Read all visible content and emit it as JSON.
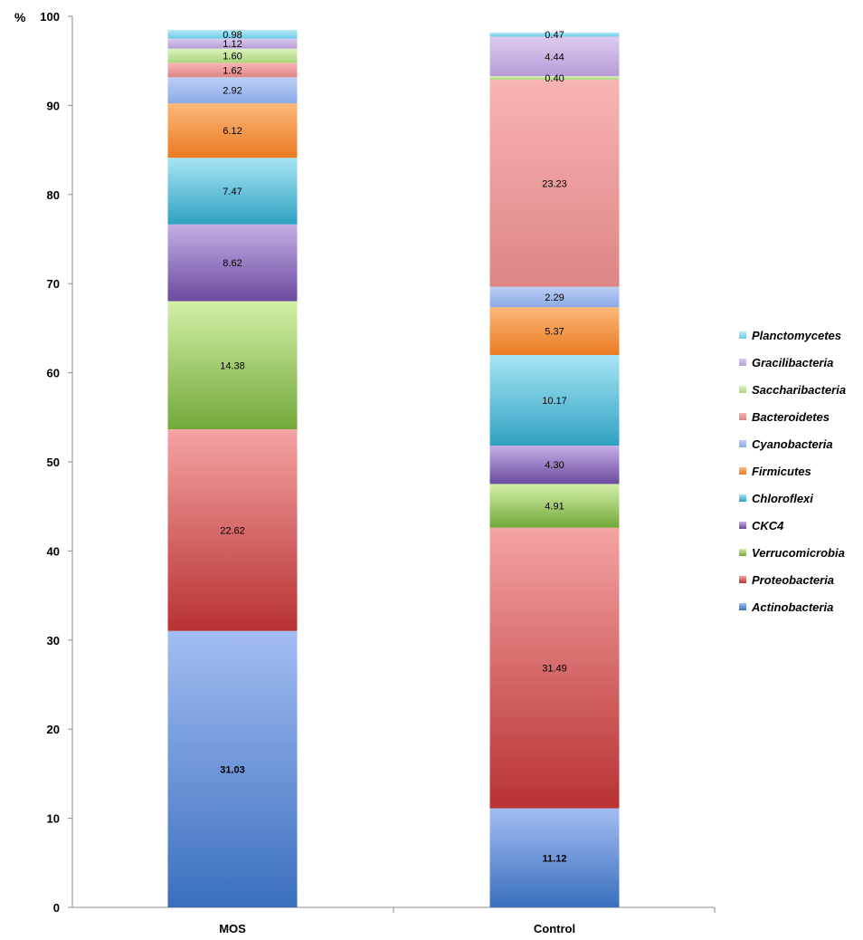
{
  "chart_data": {
    "type": "bar",
    "stacked": true,
    "y_unit": "%",
    "ylim": [
      0,
      100
    ],
    "yticks": [
      0,
      10,
      20,
      30,
      40,
      50,
      60,
      70,
      80,
      90,
      100
    ],
    "grid": false,
    "legend_position": "right",
    "categories": [
      "MOS",
      "Control"
    ],
    "series": [
      {
        "name": "Actinobacteria",
        "values": [
          31.03,
          11.12
        ],
        "color_top": "#a3bdf2",
        "color_bottom": "#3a6fbe",
        "label_bold": true
      },
      {
        "name": "Proteobacteria",
        "values": [
          22.62,
          31.49
        ],
        "color_top": "#f5a3a3",
        "color_bottom": "#b83232",
        "label_bold": false
      },
      {
        "name": "Verrucomicrobia",
        "values": [
          14.38,
          4.91
        ],
        "color_top": "#d4f0a8",
        "color_bottom": "#72a83a",
        "label_bold": false
      },
      {
        "name": "CKC4",
        "values": [
          8.62,
          4.3
        ],
        "color_top": "#c6aee6",
        "color_bottom": "#6a4a9e",
        "label_bold": false
      },
      {
        "name": "Chloroflexi",
        "values": [
          7.47,
          10.17
        ],
        "color_top": "#a8e4f5",
        "color_bottom": "#2fa2c2",
        "label_bold": false
      },
      {
        "name": "Firmicutes",
        "values": [
          6.12,
          5.37
        ],
        "color_top": "#fbb87a",
        "color_bottom": "#ea7a22",
        "label_bold": false
      },
      {
        "name": "Cyanobacteria",
        "values": [
          2.92,
          2.29
        ],
        "color_top": "#bccff5",
        "color_bottom": "#8aaae6",
        "label_bold": false
      },
      {
        "name": "Bacteroidetes",
        "values": [
          1.62,
          23.23
        ],
        "color_top": "#f9b4b4",
        "color_bottom": "#dd8585",
        "label_bold": false
      },
      {
        "name": "Saccharibacteria",
        "values": [
          1.6,
          0.4
        ],
        "color_top": "#dcf3bf",
        "color_bottom": "#a9d67c",
        "label_bold": false
      },
      {
        "name": "Gracilibacteria",
        "values": [
          1.12,
          4.44
        ],
        "color_top": "#dccbee",
        "color_bottom": "#b79cd8",
        "label_bold": false
      },
      {
        "name": "Planctomycetes",
        "values": [
          0.98,
          0.47
        ],
        "color_top": "#b7e9f7",
        "color_bottom": "#6ccbe6",
        "label_bold": false
      }
    ],
    "value_labels": [
      [
        "31.03",
        "22.62",
        "14.38",
        "8.62",
        "7.47",
        "6.12",
        "2.92",
        "1.62",
        "1.60",
        "1.12",
        "0.98"
      ],
      [
        "11.12",
        "31.49",
        "4.91",
        "4.30",
        "10.17",
        "5.37",
        "2.29",
        "23.23",
        "0.40",
        "4.44",
        "0.47"
      ]
    ]
  }
}
